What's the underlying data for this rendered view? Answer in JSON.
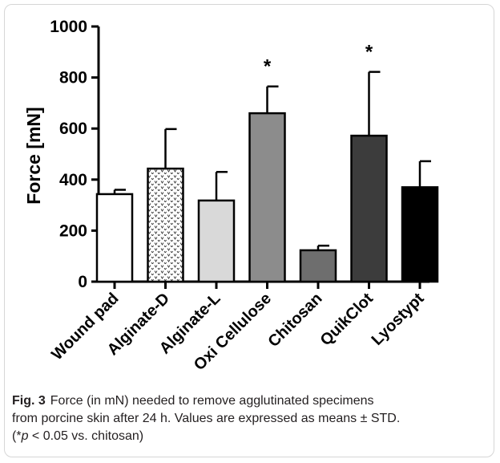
{
  "chart_data": {
    "type": "bar",
    "ylabel": "Force [mN]",
    "xlabel": "",
    "ylim": [
      0,
      1000
    ],
    "yticks": [
      0,
      200,
      400,
      600,
      800,
      1000
    ],
    "grid": false,
    "categories": [
      "Wound pad",
      "Alginate-D",
      "Alginate-L",
      "Oxi Cellulose",
      "Chitosan",
      "QuikClot",
      "Lyostypt"
    ],
    "values": [
      343,
      443,
      318,
      660,
      123,
      572,
      370
    ],
    "errors": [
      17,
      155,
      112,
      105,
      18,
      250,
      102
    ],
    "significance": [
      "",
      "",
      "",
      "*",
      "",
      "*",
      ""
    ],
    "fills": [
      "#ffffff",
      "pattern",
      "#d9d9d9",
      "#8c8c8c",
      "#6e6e6e",
      "#3c3c3c",
      "#000000"
    ]
  },
  "caption": {
    "label": "Fig. 3",
    "line1": "Force (in mN) needed to remove agglutinated specimens",
    "line2": "from porcine skin after 24 h. Values are expressed as means ± STD.",
    "line3_open": "(*",
    "line3_p": "p",
    "line3_rest": " < 0.05 vs. chitosan)"
  }
}
